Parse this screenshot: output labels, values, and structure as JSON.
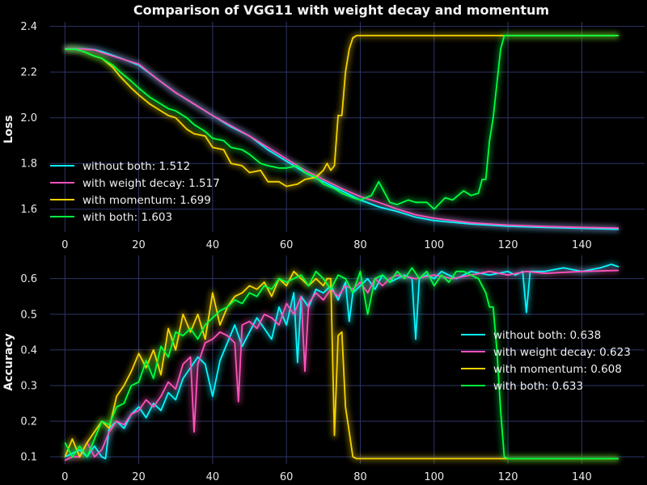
{
  "title": "Comparison of VGG11 with weight decay and momentum",
  "colors": {
    "background": "#000000",
    "grid": "#2e3566",
    "without_both": "#08f7fe",
    "with_weight_decay": "#fe53bb",
    "with_momentum": "#f5d300",
    "with_both": "#00ff41"
  },
  "chart_data": [
    {
      "type": "line",
      "id": "loss",
      "ylabel": "Loss",
      "xlim": [
        -4,
        157
      ],
      "ylim": [
        1.5,
        2.42
      ],
      "xticks": [
        0,
        20,
        40,
        60,
        80,
        100,
        120,
        140
      ],
      "yticks": [
        1.6,
        1.8,
        2.0,
        2.2,
        2.4
      ],
      "ytick_labels": [
        "1.6",
        "1.8",
        "2.0",
        "2.2",
        "2.4"
      ],
      "grid": true,
      "legend_position": "lower-left",
      "series": [
        {
          "name": "without both: 1.512",
          "color_key": "without_both",
          "x": [
            0,
            5,
            8,
            10,
            15,
            20,
            25,
            30,
            35,
            40,
            45,
            50,
            55,
            60,
            65,
            70,
            75,
            80,
            85,
            90,
            95,
            100,
            110,
            120,
            130,
            140,
            150
          ],
          "y": [
            2.303,
            2.302,
            2.298,
            2.29,
            2.262,
            2.23,
            2.17,
            2.11,
            2.06,
            2.01,
            1.96,
            1.92,
            1.86,
            1.81,
            1.76,
            1.72,
            1.68,
            1.64,
            1.61,
            1.59,
            1.565,
            1.55,
            1.535,
            1.525,
            1.52,
            1.516,
            1.512
          ]
        },
        {
          "name": "with weight decay: 1.517",
          "color_key": "with_weight_decay",
          "x": [
            0,
            5,
            8,
            10,
            15,
            20,
            25,
            30,
            35,
            40,
            45,
            50,
            55,
            60,
            65,
            70,
            75,
            80,
            85,
            90,
            95,
            100,
            110,
            120,
            130,
            140,
            150
          ],
          "y": [
            2.302,
            2.301,
            2.297,
            2.285,
            2.26,
            2.235,
            2.17,
            2.11,
            2.06,
            2.01,
            1.965,
            1.92,
            1.87,
            1.82,
            1.77,
            1.73,
            1.69,
            1.655,
            1.63,
            1.6,
            1.575,
            1.56,
            1.54,
            1.53,
            1.524,
            1.52,
            1.517
          ]
        },
        {
          "name": "with momentum: 1.699",
          "color_key": "with_momentum",
          "x": [
            0,
            3,
            5,
            8,
            10,
            13,
            15,
            18,
            20,
            23,
            25,
            28,
            30,
            33,
            35,
            38,
            40,
            43,
            45,
            48,
            50,
            53,
            55,
            58,
            60,
            63,
            65,
            68,
            70,
            71,
            72,
            73,
            74,
            75,
            76,
            77,
            78,
            79,
            80,
            90,
            100,
            110,
            120,
            130,
            140,
            150
          ],
          "y": [
            2.3,
            2.3,
            2.29,
            2.27,
            2.26,
            2.22,
            2.18,
            2.13,
            2.1,
            2.06,
            2.04,
            2.01,
            2.0,
            1.95,
            1.93,
            1.92,
            1.87,
            1.86,
            1.8,
            1.79,
            1.76,
            1.77,
            1.72,
            1.72,
            1.7,
            1.71,
            1.73,
            1.74,
            1.77,
            1.8,
            1.77,
            1.79,
            2.01,
            2.01,
            2.2,
            2.3,
            2.35,
            2.36,
            2.36,
            2.36,
            2.36,
            2.36,
            2.36,
            2.36,
            2.36,
            2.36
          ]
        },
        {
          "name": "with both: 1.603",
          "color_key": "with_both",
          "x": [
            0,
            3,
            5,
            8,
            10,
            13,
            15,
            18,
            20,
            23,
            25,
            28,
            30,
            33,
            35,
            38,
            40,
            43,
            45,
            48,
            50,
            53,
            55,
            58,
            60,
            63,
            65,
            68,
            70,
            73,
            75,
            78,
            80,
            83,
            85,
            88,
            90,
            93,
            95,
            98,
            100,
            103,
            105,
            108,
            110,
            112,
            113,
            114,
            115,
            116,
            117,
            118,
            119,
            120,
            130,
            140,
            150
          ],
          "y": [
            2.3,
            2.3,
            2.29,
            2.27,
            2.26,
            2.23,
            2.2,
            2.16,
            2.13,
            2.09,
            2.07,
            2.04,
            2.03,
            2.0,
            1.97,
            1.94,
            1.91,
            1.9,
            1.87,
            1.86,
            1.84,
            1.8,
            1.79,
            1.78,
            1.78,
            1.79,
            1.76,
            1.74,
            1.71,
            1.69,
            1.67,
            1.65,
            1.64,
            1.66,
            1.72,
            1.63,
            1.62,
            1.64,
            1.63,
            1.63,
            1.6,
            1.65,
            1.64,
            1.68,
            1.66,
            1.67,
            1.73,
            1.73,
            1.9,
            2.0,
            2.15,
            2.3,
            2.36,
            2.36,
            2.36,
            2.36,
            2.36
          ]
        }
      ]
    },
    {
      "type": "line",
      "id": "accuracy",
      "ylabel": "Accuracy",
      "xlim": [
        -4,
        157
      ],
      "ylim": [
        0.08,
        0.665
      ],
      "xticks": [
        0,
        20,
        40,
        60,
        80,
        100,
        120,
        140
      ],
      "yticks": [
        0.1,
        0.2,
        0.3,
        0.4,
        0.5,
        0.6
      ],
      "ytick_labels": [
        "0.1",
        "0.2",
        "0.3",
        "0.4",
        "0.5",
        "0.6"
      ],
      "grid": true,
      "legend_position": "center-right",
      "series": [
        {
          "name": "without both: 0.638",
          "color_key": "without_both",
          "x": [
            0,
            2,
            4,
            6,
            8,
            10,
            11,
            12,
            14,
            16,
            18,
            20,
            22,
            24,
            26,
            28,
            30,
            32,
            34,
            36,
            38,
            40,
            42,
            44,
            46,
            48,
            50,
            52,
            54,
            56,
            58,
            60,
            62,
            63,
            64,
            66,
            68,
            70,
            72,
            74,
            76,
            77,
            78,
            80,
            82,
            84,
            86,
            88,
            90,
            92,
            94,
            95,
            96,
            98,
            100,
            102,
            104,
            106,
            108,
            110,
            115,
            120,
            122,
            124,
            125,
            126,
            130,
            135,
            140,
            145,
            148,
            150
          ],
          "y": [
            0.1,
            0.11,
            0.12,
            0.1,
            0.13,
            0.1,
            0.095,
            0.18,
            0.2,
            0.18,
            0.22,
            0.24,
            0.21,
            0.25,
            0.23,
            0.28,
            0.26,
            0.32,
            0.35,
            0.38,
            0.36,
            0.27,
            0.37,
            0.42,
            0.47,
            0.41,
            0.45,
            0.49,
            0.46,
            0.43,
            0.52,
            0.47,
            0.56,
            0.365,
            0.55,
            0.52,
            0.57,
            0.56,
            0.58,
            0.54,
            0.59,
            0.48,
            0.56,
            0.58,
            0.6,
            0.57,
            0.61,
            0.59,
            0.6,
            0.61,
            0.6,
            0.43,
            0.6,
            0.61,
            0.6,
            0.62,
            0.61,
            0.6,
            0.61,
            0.62,
            0.61,
            0.62,
            0.61,
            0.62,
            0.505,
            0.62,
            0.62,
            0.63,
            0.62,
            0.63,
            0.64,
            0.633
          ]
        },
        {
          "name": "with weight decay: 0.623",
          "color_key": "with_weight_decay",
          "x": [
            0,
            2,
            4,
            6,
            8,
            10,
            12,
            14,
            16,
            18,
            20,
            22,
            24,
            26,
            28,
            30,
            32,
            34,
            35,
            36,
            38,
            40,
            42,
            44,
            46,
            47,
            48,
            50,
            52,
            54,
            56,
            58,
            60,
            62,
            64,
            65,
            66,
            68,
            70,
            72,
            74,
            76,
            78,
            80,
            82,
            84,
            86,
            88,
            90,
            95,
            100,
            105,
            110,
            115,
            120,
            125,
            130,
            140,
            150
          ],
          "y": [
            0.09,
            0.1,
            0.1,
            0.14,
            0.1,
            0.12,
            0.17,
            0.2,
            0.19,
            0.22,
            0.23,
            0.26,
            0.24,
            0.27,
            0.31,
            0.29,
            0.36,
            0.38,
            0.17,
            0.36,
            0.42,
            0.43,
            0.45,
            0.44,
            0.42,
            0.255,
            0.47,
            0.48,
            0.46,
            0.5,
            0.49,
            0.47,
            0.53,
            0.5,
            0.55,
            0.34,
            0.53,
            0.56,
            0.54,
            0.57,
            0.55,
            0.58,
            0.57,
            0.59,
            0.56,
            0.6,
            0.58,
            0.6,
            0.61,
            0.6,
            0.61,
            0.6,
            0.61,
            0.62,
            0.61,
            0.62,
            0.615,
            0.62,
            0.623
          ]
        },
        {
          "name": "with momentum: 0.608",
          "color_key": "with_momentum",
          "x": [
            0,
            2,
            4,
            6,
            8,
            10,
            12,
            14,
            16,
            18,
            20,
            22,
            24,
            26,
            28,
            30,
            32,
            34,
            36,
            38,
            40,
            42,
            44,
            46,
            48,
            50,
            52,
            54,
            56,
            58,
            60,
            62,
            64,
            66,
            68,
            70,
            71,
            72,
            73,
            74,
            75,
            76,
            77,
            78,
            79,
            80,
            90,
            100,
            110,
            120,
            130,
            140,
            150
          ],
          "y": [
            0.1,
            0.15,
            0.1,
            0.14,
            0.17,
            0.2,
            0.18,
            0.27,
            0.3,
            0.34,
            0.39,
            0.35,
            0.4,
            0.33,
            0.46,
            0.4,
            0.5,
            0.45,
            0.5,
            0.43,
            0.56,
            0.47,
            0.52,
            0.55,
            0.56,
            0.58,
            0.57,
            0.59,
            0.55,
            0.6,
            0.58,
            0.62,
            0.6,
            0.58,
            0.6,
            0.58,
            0.6,
            0.6,
            0.16,
            0.44,
            0.45,
            0.24,
            0.17,
            0.1,
            0.095,
            0.095,
            0.095,
            0.095,
            0.095,
            0.095,
            0.095,
            0.095,
            0.095
          ]
        },
        {
          "name": "with both: 0.633",
          "color_key": "with_both",
          "x": [
            0,
            2,
            4,
            6,
            8,
            10,
            12,
            14,
            16,
            18,
            20,
            22,
            24,
            26,
            28,
            30,
            32,
            34,
            36,
            38,
            40,
            42,
            44,
            46,
            48,
            50,
            52,
            54,
            56,
            58,
            60,
            62,
            64,
            66,
            68,
            70,
            72,
            74,
            76,
            78,
            80,
            82,
            84,
            86,
            88,
            90,
            92,
            94,
            96,
            98,
            100,
            102,
            104,
            106,
            108,
            110,
            112,
            114,
            115,
            116,
            117,
            118,
            119,
            120,
            130,
            140,
            150
          ],
          "y": [
            0.14,
            0.1,
            0.13,
            0.1,
            0.15,
            0.2,
            0.19,
            0.24,
            0.25,
            0.3,
            0.31,
            0.37,
            0.32,
            0.41,
            0.38,
            0.45,
            0.44,
            0.46,
            0.43,
            0.47,
            0.49,
            0.51,
            0.52,
            0.54,
            0.53,
            0.56,
            0.55,
            0.58,
            0.57,
            0.6,
            0.59,
            0.6,
            0.61,
            0.58,
            0.62,
            0.6,
            0.57,
            0.61,
            0.6,
            0.56,
            0.62,
            0.5,
            0.6,
            0.61,
            0.59,
            0.62,
            0.6,
            0.63,
            0.6,
            0.62,
            0.58,
            0.61,
            0.59,
            0.62,
            0.62,
            0.61,
            0.6,
            0.56,
            0.52,
            0.52,
            0.4,
            0.23,
            0.1,
            0.095,
            0.095,
            0.095,
            0.095
          ]
        }
      ]
    }
  ]
}
